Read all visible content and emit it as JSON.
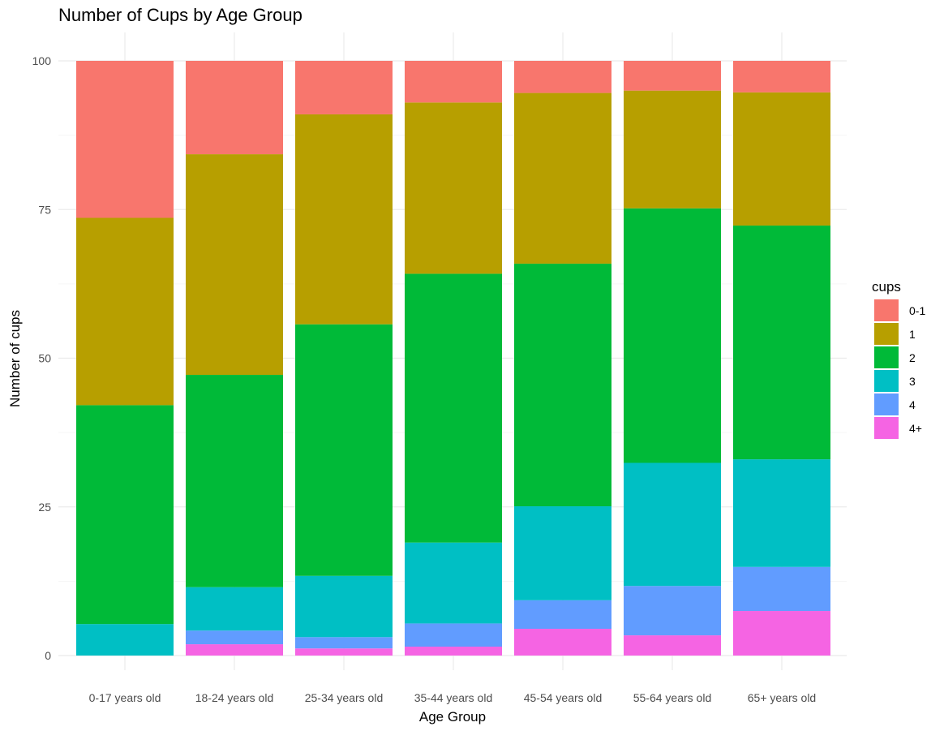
{
  "chart_data": {
    "type": "bar",
    "stacked": true,
    "title": "Number of Cups by Age Group",
    "xlabel": "Age Group",
    "ylabel": "Number of cups",
    "ylim": [
      0,
      100
    ],
    "yticks": [
      0,
      25,
      50,
      75,
      100
    ],
    "grid": true,
    "legend": {
      "title": "cups",
      "placement": "right"
    },
    "categories": [
      "0-17 years old",
      "18-24 years old",
      "25-34 years old",
      "35-44 years old",
      "45-54 years old",
      "55-64 years old",
      "65+ years old"
    ],
    "series": [
      {
        "name": "4+",
        "color": "#F564E3",
        "values": [
          0.0,
          1.9,
          1.2,
          1.5,
          4.5,
          3.4,
          7.5
        ]
      },
      {
        "name": "4",
        "color": "#619CFF",
        "values": [
          0.0,
          2.3,
          1.9,
          3.9,
          4.8,
          8.3,
          7.4
        ]
      },
      {
        "name": "3",
        "color": "#00BFC4",
        "values": [
          5.3,
          7.3,
          10.3,
          13.6,
          15.8,
          20.7,
          18.1
        ]
      },
      {
        "name": "2",
        "color": "#00BA38",
        "values": [
          36.8,
          35.7,
          42.3,
          45.2,
          40.8,
          42.8,
          39.3
        ]
      },
      {
        "name": "1",
        "color": "#B79F00",
        "values": [
          31.5,
          37.1,
          35.3,
          28.8,
          28.7,
          19.8,
          22.4
        ]
      },
      {
        "name": "0-1",
        "color": "#F8766D",
        "values": [
          26.4,
          15.7,
          9.0,
          7.0,
          5.4,
          5.0,
          5.3
        ]
      }
    ]
  }
}
